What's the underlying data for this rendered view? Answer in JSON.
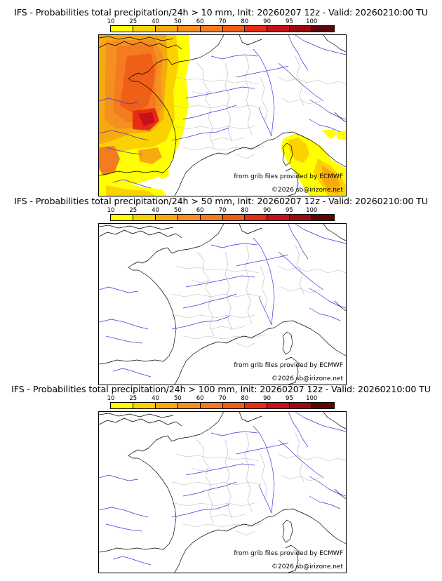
{
  "colorbar": {
    "ticks": [
      "10",
      "25",
      "40",
      "50",
      "60",
      "70",
      "80",
      "90",
      "95",
      "100"
    ],
    "colors": [
      "#ffff00",
      "#fbd200",
      "#f7aa10",
      "#f59020",
      "#f57b20",
      "#f05f18",
      "#e62d14",
      "#c8101a",
      "#9c0a10",
      "#5e0606"
    ]
  },
  "map_colors": {
    "land_bg": "#ffffff",
    "coast": "#000000",
    "rivers": "#3b3bd8",
    "regions": "#b9b9b9"
  },
  "panels": [
    {
      "title": "IFS - Probabilities total precipitation/24h > 10 mm, Init: 20260207 12z - Valid: 20260210:00 TU",
      "credit_source": "from grib files provided by ECMWF",
      "credit_copyright": "©2026 sb@irizone.net",
      "shaded": true
    },
    {
      "title": "IFS - Probabilities total precipitation/24h > 50 mm, Init: 20260207 12z - Valid: 20260210:00 TU",
      "credit_source": "from grib files provided by ECMWF",
      "credit_copyright": "©2026 sb@irizone.net",
      "shaded": false
    },
    {
      "title": "IFS - Probabilities total precipitation/24h > 100 mm, Init: 20260207 12z - Valid: 20260210:00 TU",
      "credit_source": "from grib files provided by ECMWF",
      "credit_copyright": "©2026 sb@irizone.net",
      "shaded": false
    }
  ]
}
